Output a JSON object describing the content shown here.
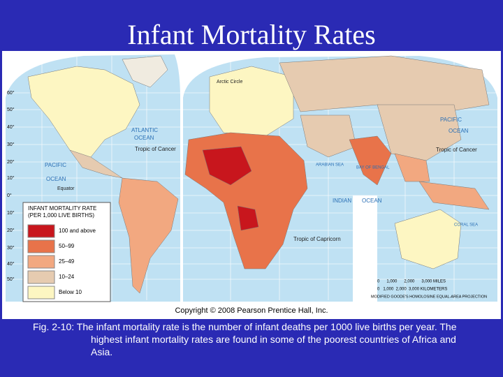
{
  "title": "Infant Mortality Rates",
  "map": {
    "legend": {
      "title": "INFANT MORTALITY RATE",
      "subtitle": "(PER 1,000 LIVE BIRTHS)",
      "items": [
        {
          "label": "100 and above",
          "color": "#c8161d"
        },
        {
          "label": "50–99",
          "color": "#e8734a"
        },
        {
          "label": "25–49",
          "color": "#f2a880"
        },
        {
          "label": "10–24",
          "color": "#e6cbb0"
        },
        {
          "label": "Below 10",
          "color": "#fdf6c2"
        }
      ]
    },
    "labels": [
      "ATLANTIC",
      "OCEAN",
      "PACIFIC",
      "OCEAN",
      "PACIFIC",
      "OCEAN",
      "INDIAN",
      "OCEAN",
      "Tropic of Cancer",
      "Tropic of Cancer",
      "Equator",
      "Tropic of Capricorn",
      "Arctic Circle",
      "ARABIAN SEA",
      "BAY OF BENGAL",
      "CORAL SEA"
    ],
    "latitudes": [
      "60°",
      "50°",
      "40°",
      "30°",
      "20°",
      "10°",
      "0°",
      "10°",
      "20°",
      "30°",
      "40°",
      "50°"
    ],
    "scale_miles": "0      1,000      2,000      3,000 MILES",
    "scale_km": "0   1,000  2,000  3,000 KILOMETERS",
    "projection": "MODIFIED GOODE'S HOMOLOSINE EQUAL-AREA PROJECTION",
    "copyright": "Copyright © 2008 Pearson Prentice Hall, Inc."
  },
  "caption": "Fig. 2-10: The infant mortality rate is the number of infant deaths per 1000 live births per year. The highest infant mortality rates are found in some of the poorest countries of Africa and Asia."
}
